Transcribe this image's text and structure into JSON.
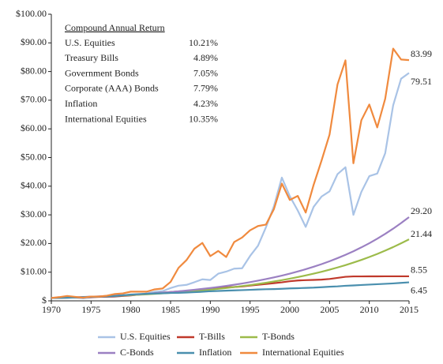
{
  "chart_data": {
    "type": "line",
    "x": [
      1970,
      1971,
      1972,
      1973,
      1974,
      1975,
      1976,
      1977,
      1978,
      1979,
      1980,
      1981,
      1982,
      1983,
      1984,
      1985,
      1986,
      1987,
      1988,
      1989,
      1990,
      1991,
      1992,
      1993,
      1994,
      1995,
      1996,
      1997,
      1998,
      1999,
      2000,
      2001,
      2002,
      2003,
      2004,
      2005,
      2006,
      2007,
      2008,
      2009,
      2010,
      2011,
      2012,
      2013,
      2014,
      2015
    ],
    "xlim": [
      1970,
      2015
    ],
    "xticks": [
      1970,
      1975,
      1980,
      1985,
      1990,
      1995,
      2000,
      2005,
      2010,
      2015
    ],
    "ylim": [
      0,
      100
    ],
    "yticks": [
      {
        "value": 0,
        "label": "$"
      },
      {
        "value": 10,
        "label": "$10.00"
      },
      {
        "value": 20,
        "label": "$20.00"
      },
      {
        "value": 30,
        "label": "$30.00"
      },
      {
        "value": 40,
        "label": "$40.00"
      },
      {
        "value": 50,
        "label": "$50.00"
      },
      {
        "value": 60,
        "label": "$60.00"
      },
      {
        "value": 70,
        "label": "$70.00"
      },
      {
        "value": 80,
        "label": "$80.00"
      },
      {
        "value": 90,
        "label": "$90.00"
      },
      {
        "value": 100,
        "label": "$100.00"
      }
    ],
    "grid": false,
    "legend": "bottom",
    "annotation": {
      "title": "Compound Annual Return",
      "rows": [
        [
          "U.S. Equities",
          "10.21%"
        ],
        [
          "Treasury Bills",
          "4.89%"
        ],
        [
          "Government Bonds",
          "7.05%"
        ],
        [
          "Corporate (AAA) Bonds",
          "7.79%"
        ],
        [
          "Inflation",
          "4.23%"
        ],
        [
          "International Equities",
          "10.35%"
        ]
      ]
    },
    "series": [
      {
        "name": "U.S. Equities",
        "color": "#a9c3e6",
        "end_label": "79.51",
        "values": [
          1.0,
          1.14,
          1.36,
          1.16,
          0.85,
          1.17,
          1.45,
          1.35,
          1.43,
          1.7,
          2.25,
          2.14,
          2.6,
          3.18,
          3.38,
          4.46,
          5.29,
          5.57,
          6.5,
          7.5,
          7.27,
          9.48,
          10.2,
          11.23,
          11.37,
          15.64,
          19.24,
          25.66,
          33.0,
          43.0,
          36.5,
          31.5,
          25.8,
          32.8,
          36.4,
          38.2,
          44.2,
          46.6,
          30.0,
          38.0,
          43.5,
          44.4,
          51.5,
          68.2,
          77.5,
          79.51
        ]
      },
      {
        "name": "T-Bills",
        "color": "#c0392b",
        "end_label": "8.55",
        "values": [
          1.0,
          1.04,
          1.08,
          1.15,
          1.24,
          1.31,
          1.38,
          1.45,
          1.55,
          1.71,
          1.9,
          2.18,
          2.41,
          2.62,
          2.88,
          3.08,
          3.27,
          3.45,
          3.67,
          3.98,
          4.29,
          4.53,
          4.69,
          4.83,
          5.03,
          5.32,
          5.59,
          5.87,
          6.16,
          6.45,
          6.83,
          7.1,
          7.22,
          7.3,
          7.4,
          7.63,
          8.0,
          8.39,
          8.52,
          8.53,
          8.54,
          8.54,
          8.55,
          8.55,
          8.55,
          8.55
        ]
      },
      {
        "name": "T-Bonds",
        "color": "#9cbb4a",
        "end_label": "21.44",
        "values": [
          1.0,
          1.07,
          1.15,
          1.23,
          1.31,
          1.41,
          1.51,
          1.61,
          1.73,
          1.85,
          1.98,
          2.12,
          2.27,
          2.43,
          2.6,
          2.78,
          2.98,
          3.19,
          3.41,
          3.65,
          3.91,
          4.19,
          4.48,
          4.8,
          5.14,
          5.5,
          5.89,
          6.3,
          6.75,
          7.22,
          7.73,
          8.28,
          8.86,
          9.49,
          10.15,
          10.87,
          11.64,
          12.46,
          13.34,
          14.28,
          15.29,
          16.36,
          17.52,
          18.75,
          20.07,
          21.44
        ]
      },
      {
        "name": "C-Bonds",
        "color": "#9b80c2",
        "end_label": "29.20",
        "values": [
          1.0,
          1.08,
          1.16,
          1.25,
          1.35,
          1.46,
          1.57,
          1.69,
          1.82,
          1.96,
          2.12,
          2.28,
          2.46,
          2.65,
          2.86,
          3.08,
          3.32,
          3.58,
          3.86,
          4.16,
          4.48,
          4.83,
          5.21,
          5.61,
          6.05,
          6.52,
          7.03,
          7.58,
          8.17,
          8.8,
          9.49,
          10.23,
          11.03,
          11.89,
          12.81,
          13.81,
          14.89,
          16.05,
          17.3,
          18.65,
          20.1,
          21.67,
          23.36,
          25.18,
          27.14,
          29.2
        ]
      },
      {
        "name": "Inflation",
        "color": "#4a8fae",
        "end_label": "6.45",
        "values": [
          1.0,
          1.03,
          1.07,
          1.16,
          1.3,
          1.39,
          1.46,
          1.56,
          1.7,
          1.92,
          2.17,
          2.36,
          2.45,
          2.54,
          2.64,
          2.74,
          2.77,
          2.89,
          3.02,
          3.16,
          3.35,
          3.45,
          3.55,
          3.65,
          3.74,
          3.84,
          3.97,
          4.04,
          4.1,
          4.2,
          4.34,
          4.41,
          4.52,
          4.61,
          4.76,
          4.92,
          5.05,
          5.25,
          5.38,
          5.52,
          5.66,
          5.8,
          5.94,
          6.08,
          6.26,
          6.45
        ]
      },
      {
        "name": "International Equities",
        "color": "#f08a3e",
        "end_label": "83.99",
        "values": [
          1.0,
          1.3,
          1.7,
          1.4,
          1.1,
          1.5,
          1.5,
          1.8,
          2.4,
          2.6,
          3.2,
          3.2,
          3.2,
          4.0,
          4.3,
          6.6,
          11.5,
          14.2,
          18.2,
          20.2,
          15.6,
          17.4,
          15.3,
          20.5,
          22.1,
          24.6,
          26.1,
          26.6,
          32.0,
          40.9,
          35.2,
          36.6,
          30.8,
          40.5,
          49.0,
          58.0,
          75.5,
          83.9,
          48.0,
          63.0,
          68.5,
          60.5,
          70.5,
          88.0,
          84.2,
          83.99
        ]
      }
    ]
  }
}
